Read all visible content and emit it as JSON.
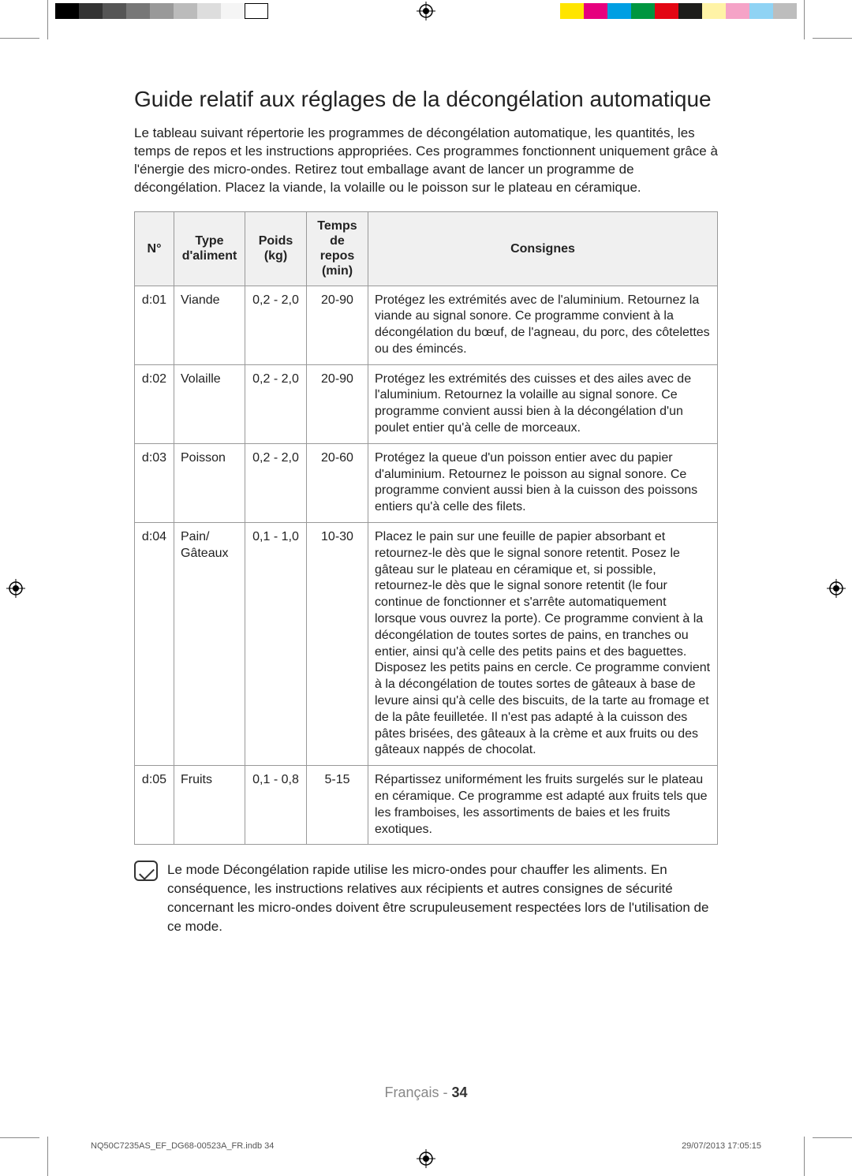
{
  "print_bars": {
    "grayscale": [
      "#000000",
      "#333333",
      "#555555",
      "#777777",
      "#999999",
      "#bbbbbb",
      "#dddddd",
      "#f5f5f5",
      "#ffffff"
    ],
    "color": [
      "#ffe500",
      "#e6007e",
      "#009fe3",
      "#009640",
      "#e30613",
      "#1d1d1b",
      "#fff3a6",
      "#f5a3c7",
      "#8fd3f4",
      "#bdbdbd"
    ]
  },
  "title": "Guide relatif aux réglages de la décongélation automatique",
  "intro": "Le tableau suivant répertorie les programmes de décongélation automatique, les quantités, les temps de repos et les instructions appropriées. Ces programmes fonctionnent uniquement grâce à l'énergie des micro-ondes. Retirez tout emballage avant de lancer un programme de décongélation. Placez la viande, la volaille ou le poisson sur le plateau en céramique.",
  "table": {
    "headers": {
      "n": "N°",
      "type": "Type d'aliment",
      "poids": "Poids (kg)",
      "temps": "Temps de repos (min)",
      "consignes": "Consignes"
    },
    "rows": [
      {
        "n": "d:01",
        "type": "Viande",
        "poids": "0,2 - 2,0",
        "temps": "20-90",
        "consignes": "Protégez les extrémités avec de l'aluminium. Retournez la viande au signal sonore. Ce programme convient à la décongélation du bœuf, de l'agneau, du porc, des côtelettes ou des émincés."
      },
      {
        "n": "d:02",
        "type": "Volaille",
        "poids": "0,2 - 2,0",
        "temps": "20-90",
        "consignes": "Protégez les extrémités des cuisses et des ailes avec de l'aluminium. Retournez la volaille au signal sonore. Ce programme convient aussi bien à la décongélation d'un poulet entier qu'à celle de morceaux."
      },
      {
        "n": "d:03",
        "type": "Poisson",
        "poids": "0,2 - 2,0",
        "temps": "20-60",
        "consignes": "Protégez la queue d'un poisson entier avec du papier d'aluminium. Retournez le poisson au signal sonore. Ce programme convient aussi bien à la cuisson des poissons entiers qu'à celle des filets."
      },
      {
        "n": "d:04",
        "type": "Pain/ Gâteaux",
        "poids": "0,1 - 1,0",
        "temps": "10-30",
        "consignes": "Placez le pain sur une feuille de papier absorbant et retournez-le dès que le signal sonore retentit. Posez le gâteau sur le plateau en céramique et, si possible, retournez-le dès que le signal sonore retentit (le four continue de fonctionner et s'arrête automatiquement lorsque vous ouvrez la porte). Ce programme convient à la décongélation de toutes sortes de pains, en tranches ou entier, ainsi qu'à celle des petits pains et des baguettes. Disposez les petits pains en cercle. Ce programme convient à la décongélation de toutes sortes de gâteaux à base de levure ainsi qu'à celle des biscuits, de la tarte au fromage et de la pâte feuilletée. Il n'est pas adapté à la cuisson des pâtes brisées, des gâteaux à la crème et aux fruits ou des gâteaux nappés de chocolat."
      },
      {
        "n": "d:05",
        "type": "Fruits",
        "poids": "0,1 - 0,8",
        "temps": "5-15",
        "consignes": "Répartissez uniformément les fruits surgelés sur le plateau en céramique. Ce programme est adapté aux fruits tels que les framboises, les assortiments de baies et les fruits exotiques."
      }
    ]
  },
  "note": "Le mode Décongélation rapide utilise les micro-ondes pour chauffer les aliments. En conséquence, les instructions relatives aux récipients et autres consignes de sécurité concernant les micro-ondes doivent être scrupuleusement respectées lors de l'utilisation de ce mode.",
  "footer": {
    "lang": "Français - ",
    "page": "34"
  },
  "meta": {
    "file": "NQ50C7235AS_EF_DG68-00523A_FR.indb   34",
    "date": "29/07/2013   17:05:15"
  }
}
